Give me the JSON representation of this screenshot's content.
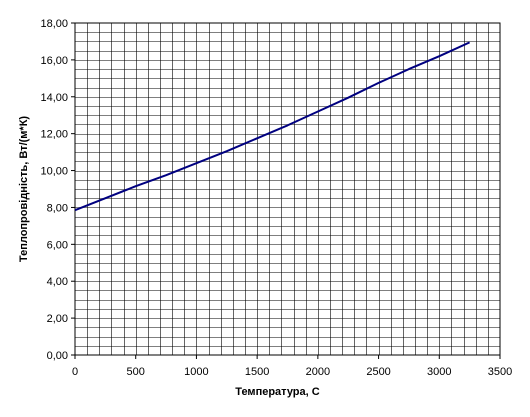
{
  "chart_data": {
    "type": "line",
    "title": "",
    "xlabel": "Температура, С",
    "ylabel": "Теплопровідність, Вт/(м*К)",
    "xlim": [
      0,
      3500
    ],
    "ylim": [
      0,
      18
    ],
    "x_ticks": [
      "0",
      "500",
      "1000",
      "1500",
      "2000",
      "2500",
      "3000",
      "3500"
    ],
    "y_ticks": [
      "0,00",
      "2,00",
      "4,00",
      "6,00",
      "8,00",
      "10,00",
      "12,00",
      "14,00",
      "16,00",
      "18,00"
    ],
    "grid": true,
    "legend": "none",
    "series": [
      {
        "color": "#000080",
        "x": [
          0,
          250,
          500,
          750,
          1000,
          1250,
          1500,
          1750,
          2000,
          2250,
          2500,
          2750,
          3000,
          3250
        ],
        "y": [
          7.85,
          8.5,
          9.15,
          9.75,
          10.4,
          11.05,
          11.75,
          12.45,
          13.2,
          13.95,
          14.75,
          15.5,
          16.2,
          16.95
        ]
      }
    ]
  }
}
